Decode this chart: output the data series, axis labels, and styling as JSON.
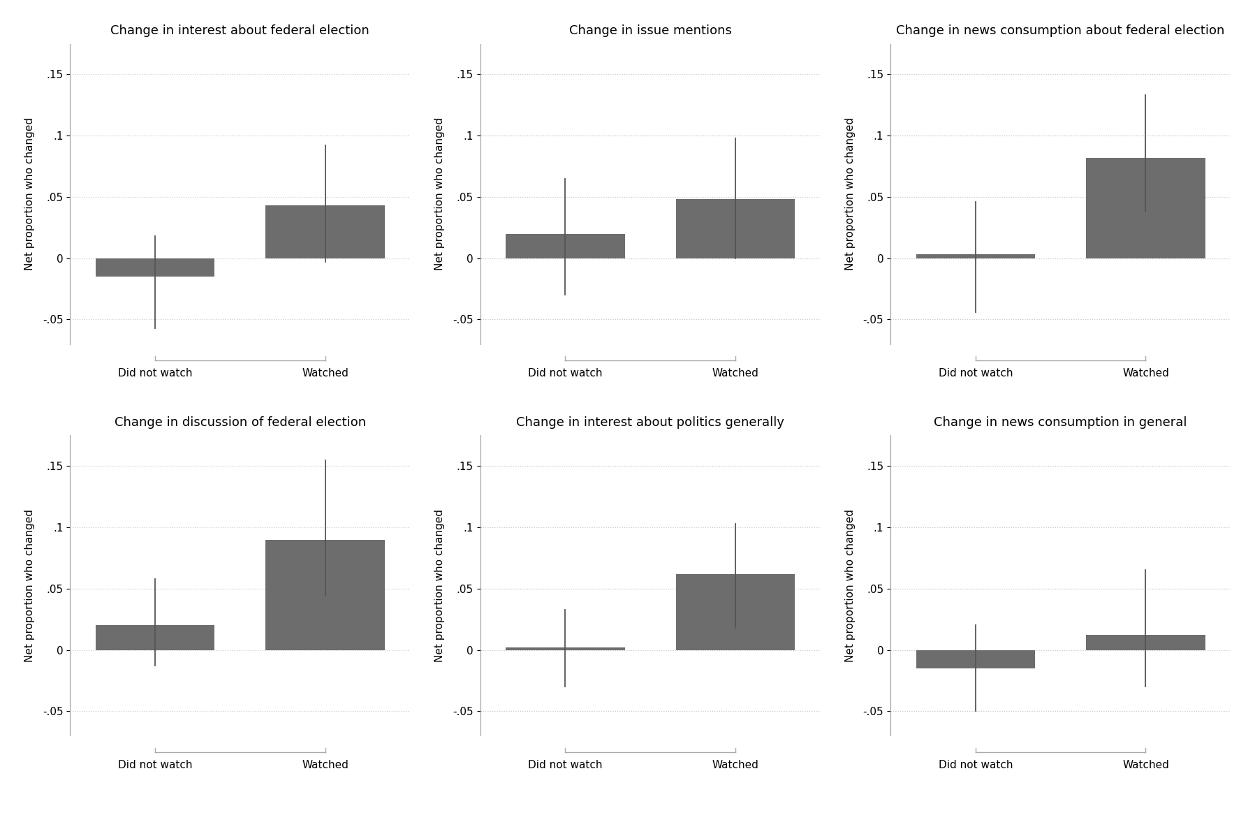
{
  "subplots": [
    {
      "title": "Change in interest about federal election",
      "bars": [
        {
          "label": "Did not watch",
          "value": -0.015,
          "ci_low": -0.057,
          "ci_high": 0.018
        },
        {
          "label": "Watched",
          "value": 0.043,
          "ci_low": -0.003,
          "ci_high": 0.092
        }
      ]
    },
    {
      "title": "Change in issue mentions",
      "bars": [
        {
          "label": "Did not watch",
          "value": 0.02,
          "ci_low": -0.03,
          "ci_high": 0.065
        },
        {
          "label": "Watched",
          "value": 0.048,
          "ci_low": 0.0,
          "ci_high": 0.098
        }
      ]
    },
    {
      "title": "Change in news consumption about federal election",
      "bars": [
        {
          "label": "Did not watch",
          "value": 0.003,
          "ci_low": -0.044,
          "ci_high": 0.046
        },
        {
          "label": "Watched",
          "value": 0.082,
          "ci_low": 0.038,
          "ci_high": 0.133
        }
      ]
    },
    {
      "title": "Change in discussion of federal election",
      "bars": [
        {
          "label": "Did not watch",
          "value": 0.02,
          "ci_low": -0.013,
          "ci_high": 0.058
        },
        {
          "label": "Watched",
          "value": 0.09,
          "ci_low": 0.045,
          "ci_high": 0.155
        }
      ]
    },
    {
      "title": "Change in interest about politics generally",
      "bars": [
        {
          "label": "Did not watch",
          "value": 0.002,
          "ci_low": -0.03,
          "ci_high": 0.033
        },
        {
          "label": "Watched",
          "value": 0.062,
          "ci_low": 0.018,
          "ci_high": 0.103
        }
      ]
    },
    {
      "title": "Change in news consumption in general",
      "bars": [
        {
          "label": "Did not watch",
          "value": -0.015,
          "ci_low": -0.05,
          "ci_high": 0.02
        },
        {
          "label": "Watched",
          "value": 0.012,
          "ci_low": -0.03,
          "ci_high": 0.065
        }
      ]
    }
  ],
  "bar_color": "#6d6d6d",
  "bar_width": 0.7,
  "errorbar_color": "#555555",
  "errorbar_linewidth": 1.3,
  "ylabel": "Net proportion who changed",
  "ylim": [
    -0.07,
    0.175
  ],
  "yticks": [
    -0.05,
    0,
    0.05,
    0.1,
    0.15
  ],
  "yticklabels": [
    "-.05",
    "0",
    ".05",
    ".1",
    ".15"
  ],
  "background_color": "#ffffff",
  "grid_color": "#c8c8c8",
  "grid_linestyle": ":",
  "grid_linewidth": 0.9,
  "title_fontsize": 13,
  "ylabel_fontsize": 11,
  "tick_fontsize": 11,
  "xlabel_fontsize": 11,
  "bracket_color": "#aaaaaa",
  "bracket_linewidth": 1.0,
  "x_positions": [
    0.5,
    1.5
  ],
  "xlim": [
    0,
    2
  ]
}
